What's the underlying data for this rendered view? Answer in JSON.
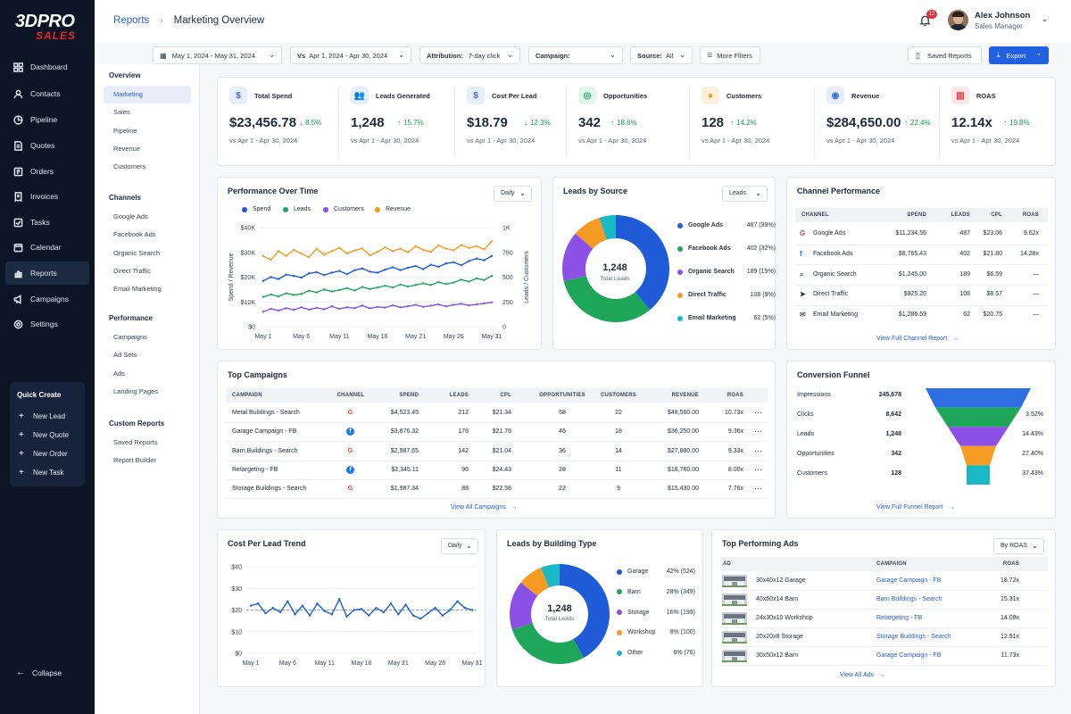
{
  "brand": {
    "line1": "3DPRO",
    "line2": "SALES"
  },
  "nav": [
    {
      "label": "Dashboard",
      "icon": "dashboard-icon"
    },
    {
      "label": "Contacts",
      "icon": "contacts-icon"
    },
    {
      "label": "Pipeline",
      "icon": "pipeline-icon"
    },
    {
      "label": "Quotes",
      "icon": "quotes-icon"
    },
    {
      "label": "Orders",
      "icon": "orders-icon"
    },
    {
      "label": "Invoices",
      "icon": "invoices-icon"
    },
    {
      "label": "Tasks",
      "icon": "tasks-icon"
    },
    {
      "label": "Calendar",
      "icon": "calendar-icon"
    },
    {
      "label": "Reports",
      "icon": "reports-icon"
    },
    {
      "label": "Campaigns",
      "icon": "campaigns-icon"
    },
    {
      "label": "Settings",
      "icon": "settings-icon"
    }
  ],
  "quick_create": {
    "title": "Quick Create",
    "items": [
      "New Lead",
      "New Quote",
      "New Order",
      "New Task"
    ]
  },
  "collapse_label": "Collapse",
  "breadcrumb": {
    "parent": "Reports",
    "current": "Marketing Overview"
  },
  "notifications": {
    "count": "12"
  },
  "user": {
    "name": "Alex Johnson",
    "role": "Sales Manager"
  },
  "filters": {
    "date_range": "May 1, 2024 - May 31, 2024",
    "compare": "Apr 1, 2024 - Apr 30, 2024",
    "compare_label": "Vs",
    "attribution_label": "Attribution:",
    "attribution_value": "7-day click",
    "campaign_label": "Campaign:",
    "campaign_value": "",
    "source_label": "Source:",
    "source_value": "All",
    "more_filters": "More Filters",
    "saved_reports": "Saved Reports",
    "export": "Export"
  },
  "subnav": {
    "sections": [
      {
        "title": "Overview",
        "items": [
          "Marketing",
          "Sales",
          "Pipeline",
          "Revenue",
          "Customers"
        ]
      },
      {
        "title": "Channels",
        "items": [
          "Google Ads",
          "Facebook Ads",
          "Organic Search",
          "Direct Traffic",
          "Email Marketing"
        ]
      },
      {
        "title": "Performance",
        "items": [
          "Campaigns",
          "Ad Sets",
          "Ads",
          "Landing Pages"
        ]
      },
      {
        "title": "Custom Reports",
        "items": [
          "Saved Reports",
          "Report Builder"
        ]
      }
    ]
  },
  "kpis": [
    {
      "label": "Total Spend",
      "value": "$23,456.78",
      "delta": "8.5%",
      "direction": "down",
      "compare": "vs Apr 1 - Apr 30, 2024",
      "icon": "dollar-icon",
      "color": "#3b6fd8",
      "bg": "#e6eefc"
    },
    {
      "label": "Leads Generated",
      "value": "1,248",
      "delta": "15.7%",
      "direction": "up",
      "compare": "vs Apr 1 - Apr 30, 2024",
      "icon": "users-icon",
      "color": "#3b6fd8",
      "bg": "#e6eefc"
    },
    {
      "label": "Cost Per Lead",
      "value": "$18.79",
      "delta": "12.3%",
      "direction": "down",
      "compare": "vs Apr 1 - Apr 30, 2024",
      "icon": "dollar-icon",
      "color": "#3b6fd8",
      "bg": "#e6eefc"
    },
    {
      "label": "Opportunities",
      "value": "342",
      "delta": "18.6%",
      "direction": "up",
      "compare": "vs Apr 1 - Apr 30, 2024",
      "icon": "target-icon",
      "color": "#1ba35a",
      "bg": "#e3f6ea"
    },
    {
      "label": "Customers",
      "value": "128",
      "delta": "14.2%",
      "direction": "up",
      "compare": "vs Apr 1 - Apr 30, 2024",
      "icon": "customer-icon",
      "color": "#f0a020",
      "bg": "#fdf1dc"
    },
    {
      "label": "Revenue",
      "value": "$284,650.00",
      "delta": "22.4%",
      "direction": "up",
      "compare": "vs Apr 1 - Apr 30, 2024",
      "icon": "revenue-icon",
      "color": "#3b6fd8",
      "bg": "#e6eefc"
    },
    {
      "label": "ROAS",
      "value": "12.14x",
      "delta": "19.8%",
      "direction": "up",
      "compare": "vs Apr 1 - Apr 30, 2024",
      "icon": "chart-icon",
      "color": "#e0323c",
      "bg": "#fde6e7"
    }
  ],
  "performance": {
    "title": "Performance Over Time",
    "granularity": "Daily",
    "ylabel_left": "Spend / Revenue",
    "ylabel_right": "Leads / Customers"
  },
  "leads_source": {
    "title": "Leads by Source",
    "metric": "Leads",
    "center_value": "1,248",
    "center_label": "Total Leads"
  },
  "channel_perf": {
    "title": "Channel Performance",
    "headers": [
      "CHANNEL",
      "SPEND",
      "LEADS",
      "CPL",
      "ROAS"
    ],
    "rows": [
      {
        "channel": "Google Ads",
        "spend": "$11,234.56",
        "leads": "487",
        "cpl": "$23.06",
        "roas": "9.62x",
        "icon": "google-icon"
      },
      {
        "channel": "Facebook Ads",
        "spend": "$8,765.43",
        "leads": "402",
        "cpl": "$21.80",
        "roas": "14.28x",
        "icon": "facebook-icon"
      },
      {
        "channel": "Organic Search",
        "spend": "$1,245.00",
        "leads": "189",
        "cpl": "$6.59",
        "roas": "—",
        "icon": "search-icon"
      },
      {
        "channel": "Direct Traffic",
        "spend": "$925.20",
        "leads": "108",
        "cpl": "$8.57",
        "roas": "—",
        "icon": "cursor-icon"
      },
      {
        "channel": "Email Marketing",
        "spend": "$1,286.59",
        "leads": "62",
        "cpl": "$20.75",
        "roas": "—",
        "icon": "mail-icon"
      }
    ],
    "link": "View Full Channel Report"
  },
  "top_campaigns": {
    "title": "Top Campaigns",
    "headers": [
      "CAMPAIGN",
      "CHANNEL",
      "SPEND",
      "LEADS",
      "CPL",
      "OPPORTUNITIES",
      "CUSTOMERS",
      "REVENUE",
      "ROAS"
    ],
    "rows": [
      {
        "name": "Metal Buildings - Search",
        "channel": "google",
        "spend": "$4,523.45",
        "leads": "212",
        "cpl": "$21.34",
        "opps": "58",
        "customers": "22",
        "revenue": "$48,560.00",
        "roas": "10.73x"
      },
      {
        "name": "Garage Campaign - FB",
        "channel": "facebook",
        "spend": "$3,876.32",
        "leads": "178",
        "cpl": "$21.78",
        "opps": "46",
        "customers": "18",
        "revenue": "$36,250.00",
        "roas": "9.36x"
      },
      {
        "name": "Barn Buildings - Search",
        "channel": "google",
        "spend": "$2,987.65",
        "leads": "142",
        "cpl": "$21.04",
        "opps": "36",
        "customers": "14",
        "revenue": "$27,890.00",
        "roas": "9.33x"
      },
      {
        "name": "Retargeting - FB",
        "channel": "facebook",
        "spend": "$2,345.11",
        "leads": "96",
        "cpl": "$24.43",
        "opps": "28",
        "customers": "11",
        "revenue": "$18,760.00",
        "roas": "8.00x"
      },
      {
        "name": "Storage Buildings - Search",
        "channel": "google",
        "spend": "$1,987.34",
        "leads": "88",
        "cpl": "$22.58",
        "opps": "22",
        "customers": "9",
        "revenue": "$15,430.00",
        "roas": "7.76x"
      }
    ],
    "more": "···",
    "link": "View All Campaigns"
  },
  "funnel": {
    "title": "Conversion Funnel",
    "stages": [
      {
        "label": "Impressions",
        "value": "245,678",
        "rate": "",
        "color": "#2f6fe4"
      },
      {
        "label": "Clicks",
        "value": "8,642",
        "rate": "3.52%",
        "color": "#1ea65a"
      },
      {
        "label": "Leads",
        "value": "1,248",
        "rate": "14.43%",
        "color": "#8b50e6"
      },
      {
        "label": "Opportunities",
        "value": "342",
        "rate": "27.40%",
        "color": "#f59a23"
      },
      {
        "label": "Customers",
        "value": "128",
        "rate": "37.43%",
        "color": "#19b9c6"
      }
    ],
    "link": "View Full Funnel Report"
  },
  "cpl_trend": {
    "title": "Cost Per Lead Trend",
    "granularity": "Daily"
  },
  "building_type": {
    "title": "Leads by Building Type",
    "center_value": "1,248",
    "center_label": "Total Leads"
  },
  "top_ads": {
    "title": "Top Performing Ads",
    "sort": "By ROAS",
    "headers": [
      "AD",
      "CAMPAIGN",
      "ROAS"
    ],
    "rows": [
      {
        "ad": "30x40x12 Garage",
        "campaign": "Garage Campaign - FB",
        "roas": "18.72x"
      },
      {
        "ad": "40x60x14 Barn",
        "campaign": "Barn Buildings - Search",
        "roas": "15.31x"
      },
      {
        "ad": "24x30x10 Workshop",
        "campaign": "Retargeting - FB",
        "roas": "14.08x"
      },
      {
        "ad": "20x20x8 Storage",
        "campaign": "Storage Buildings - Search",
        "roas": "12.91x"
      },
      {
        "ad": "30x50x12 Barn",
        "campaign": "Garage Campaign - FB",
        "roas": "11.73x"
      }
    ],
    "link": "View All Ads"
  },
  "chart_data": [
    {
      "type": "line",
      "title": "Performance Over Time",
      "x_ticks": [
        "May 1",
        "May 6",
        "May 11",
        "May 16",
        "May 21",
        "May 26",
        "May 31"
      ],
      "y_left_ticks": [
        "$0",
        "$10K",
        "$20K",
        "$30K",
        "$40K"
      ],
      "y_right_ticks": [
        "0",
        "250",
        "500",
        "750",
        "1K"
      ],
      "ylim_left": [
        0,
        40000
      ],
      "ylim_right": [
        0,
        1000
      ],
      "series": [
        {
          "name": "Spend",
          "axis": "left",
          "color": "#1f5bd6",
          "values": [
            18500,
            20000,
            19200,
            21000,
            20500,
            19800,
            21500,
            22000,
            20800,
            21800,
            22500,
            21200,
            22800,
            23500,
            22200,
            21800,
            23000,
            24000,
            22800,
            23800,
            24500,
            23200,
            25000,
            24200,
            25500,
            26000,
            24800,
            26500,
            27500,
            26800,
            28500
          ]
        },
        {
          "name": "Leads",
          "axis": "left",
          "color": "#1ea65a",
          "values": [
            12000,
            13000,
            12200,
            13500,
            12800,
            13200,
            14500,
            13800,
            15000,
            14200,
            14800,
            15500,
            14600,
            16000,
            15200,
            15800,
            16500,
            15800,
            17000,
            16200,
            16800,
            17500,
            16800,
            18000,
            17200,
            17800,
            19000,
            18200,
            19500,
            18800,
            20500
          ]
        },
        {
          "name": "Customers",
          "axis": "left",
          "color": "#8b50e6",
          "values": [
            6000,
            7200,
            6500,
            7500,
            6800,
            7800,
            6900,
            7600,
            7000,
            8200,
            7200,
            7800,
            7500,
            8500,
            7400,
            8000,
            7700,
            8600,
            7800,
            8200,
            8800,
            8000,
            8500,
            9000,
            8200,
            8800,
            9200,
            8600,
            9000,
            9400,
            9800
          ]
        },
        {
          "name": "Revenue",
          "axis": "left",
          "color": "#f59a23",
          "values": [
            28500,
            27000,
            30500,
            28500,
            31000,
            29500,
            28000,
            31500,
            29000,
            30500,
            31800,
            29500,
            30800,
            31500,
            28800,
            30200,
            32000,
            30500,
            31500,
            30000,
            32500,
            31000,
            30200,
            32800,
            31500,
            30800,
            33000,
            31800,
            32500,
            31200,
            34500
          ]
        }
      ]
    },
    {
      "type": "pie",
      "title": "Leads by Source",
      "series": [
        {
          "name": "Google Ads",
          "value": 487,
          "label": "487 (39%)",
          "color": "#1f5bd6"
        },
        {
          "name": "Facebook Ads",
          "value": 402,
          "label": "402 (32%)",
          "color": "#1ea65a"
        },
        {
          "name": "Organic Search",
          "value": 189,
          "label": "189 (15%)",
          "color": "#8b50e6"
        },
        {
          "name": "Direct Traffic",
          "value": 108,
          "label": "108 (9%)",
          "color": "#f59a23"
        },
        {
          "name": "Email Marketing",
          "value": 62,
          "label": "62 (5%)",
          "color": "#19b9c6"
        }
      ]
    },
    {
      "type": "line",
      "title": "Cost Per Lead Trend",
      "x_ticks": [
        "May 1",
        "May 6",
        "May 11",
        "May 16",
        "May 21",
        "May 26",
        "May 31"
      ],
      "y_ticks": [
        "$0",
        "$10",
        "$20",
        "$30",
        "$40"
      ],
      "ylim": [
        0,
        40
      ],
      "target": 20,
      "series": [
        {
          "name": "CPL",
          "color": "#1f5bd6",
          "values": [
            22,
            23,
            18.5,
            21,
            19,
            24,
            18,
            22,
            17.5,
            23,
            19.5,
            18,
            25,
            17,
            20,
            20.5,
            17.5,
            21,
            19,
            23,
            18,
            22.5,
            17.5,
            16,
            18.5,
            21,
            17.5,
            20,
            24,
            21,
            20
          ]
        }
      ]
    },
    {
      "type": "pie",
      "title": "Leads by Building Type",
      "series": [
        {
          "name": "Garage",
          "value": 524,
          "label": "42% (524)",
          "color": "#1f5bd6"
        },
        {
          "name": "Barn",
          "value": 349,
          "label": "28% (349)",
          "color": "#1ea65a"
        },
        {
          "name": "Storage",
          "value": 199,
          "label": "16% (199)",
          "color": "#8b50e6"
        },
        {
          "name": "Workshop",
          "value": 100,
          "label": "8% (100)",
          "color": "#f59a23"
        },
        {
          "name": "Other",
          "value": 76,
          "label": "6% (76)",
          "color": "#19b9c6"
        }
      ]
    }
  ]
}
